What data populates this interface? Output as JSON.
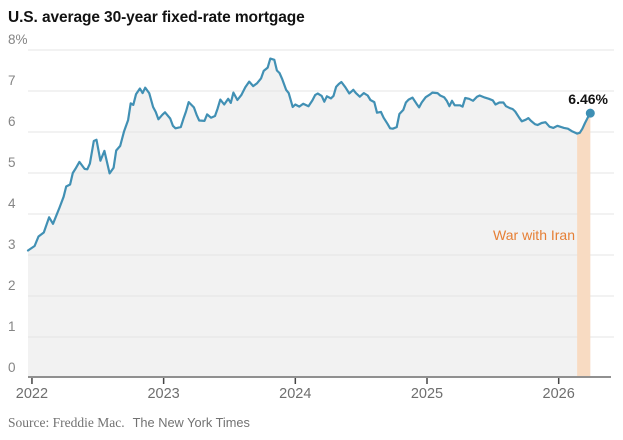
{
  "title": "U.S. average 30-year fixed-rate mortgage",
  "source": {
    "prefix": "Source: Freddie Mac.",
    "credit": "The New York Times"
  },
  "colors": {
    "line": "#4190b4",
    "end_dot": "#3e8fb4",
    "area_fill": "#f2f2f2",
    "gridline": "#e4e4e4",
    "band_fill": "#f8dbc2",
    "band_label": "#e67f35",
    "axis_line": "#909090",
    "tick_mark": "#444444",
    "title_text": "#121212",
    "annotation_text": "#121212",
    "y_label_text": "#858585",
    "x_label_text": "#6e6e6e",
    "source_text": "#727272"
  },
  "chart_data": {
    "type": "line",
    "title": "U.S. average 30-year fixed-rate mortgage",
    "unit": "percent",
    "xlim": [
      2021.97,
      2026.42
    ],
    "ylim": [
      0,
      8
    ],
    "grid": "horizontal",
    "legend": "none",
    "x_ticks": [
      {
        "value": 2022,
        "label": "2022"
      },
      {
        "value": 2023,
        "label": "2023"
      },
      {
        "value": 2024,
        "label": "2024"
      },
      {
        "value": 2025,
        "label": "2025"
      },
      {
        "value": 2026,
        "label": "2026"
      }
    ],
    "y_ticks": [
      {
        "value": 8,
        "label": "8%"
      },
      {
        "value": 7,
        "label": "7"
      },
      {
        "value": 6,
        "label": "6"
      },
      {
        "value": 5,
        "label": "5"
      },
      {
        "value": 4,
        "label": "4"
      },
      {
        "value": 3,
        "label": "3"
      },
      {
        "value": 2,
        "label": "2"
      },
      {
        "value": 1,
        "label": "1"
      },
      {
        "value": 0,
        "label": "0"
      }
    ],
    "band": {
      "label": "War with Iran",
      "x0": 2026.14,
      "x1": 2026.25
    },
    "end_point": {
      "x": 2026.24,
      "y": 6.46,
      "label": "6.46%"
    },
    "series": [
      {
        "name": "30-year fixed-rate mortgage rate",
        "points": [
          [
            2021.97,
            3.11
          ],
          [
            2022.02,
            3.22
          ],
          [
            2022.05,
            3.45
          ],
          [
            2022.09,
            3.55
          ],
          [
            2022.13,
            3.92
          ],
          [
            2022.16,
            3.76
          ],
          [
            2022.21,
            4.16
          ],
          [
            2022.24,
            4.42
          ],
          [
            2022.26,
            4.67
          ],
          [
            2022.29,
            4.72
          ],
          [
            2022.31,
            5.0
          ],
          [
            2022.33,
            5.1
          ],
          [
            2022.36,
            5.27
          ],
          [
            2022.4,
            5.1
          ],
          [
            2022.42,
            5.09
          ],
          [
            2022.44,
            5.23
          ],
          [
            2022.47,
            5.78
          ],
          [
            2022.49,
            5.81
          ],
          [
            2022.52,
            5.3
          ],
          [
            2022.55,
            5.54
          ],
          [
            2022.59,
            4.99
          ],
          [
            2022.62,
            5.13
          ],
          [
            2022.64,
            5.55
          ],
          [
            2022.67,
            5.66
          ],
          [
            2022.7,
            6.02
          ],
          [
            2022.73,
            6.29
          ],
          [
            2022.75,
            6.7
          ],
          [
            2022.77,
            6.66
          ],
          [
            2022.79,
            6.92
          ],
          [
            2022.82,
            7.06
          ],
          [
            2022.84,
            6.95
          ],
          [
            2022.86,
            7.08
          ],
          [
            2022.89,
            6.95
          ],
          [
            2022.92,
            6.61
          ],
          [
            2022.94,
            6.49
          ],
          [
            2022.96,
            6.31
          ],
          [
            2022.99,
            6.42
          ],
          [
            2023.01,
            6.48
          ],
          [
            2023.05,
            6.33
          ],
          [
            2023.07,
            6.15
          ],
          [
            2023.09,
            6.09
          ],
          [
            2023.13,
            6.12
          ],
          [
            2023.15,
            6.32
          ],
          [
            2023.17,
            6.5
          ],
          [
            2023.19,
            6.73
          ],
          [
            2023.23,
            6.6
          ],
          [
            2023.25,
            6.42
          ],
          [
            2023.27,
            6.28
          ],
          [
            2023.31,
            6.27
          ],
          [
            2023.33,
            6.43
          ],
          [
            2023.36,
            6.35
          ],
          [
            2023.39,
            6.39
          ],
          [
            2023.41,
            6.57
          ],
          [
            2023.43,
            6.79
          ],
          [
            2023.46,
            6.67
          ],
          [
            2023.49,
            6.81
          ],
          [
            2023.51,
            6.71
          ],
          [
            2023.53,
            6.96
          ],
          [
            2023.56,
            6.78
          ],
          [
            2023.59,
            6.9
          ],
          [
            2023.62,
            7.09
          ],
          [
            2023.65,
            7.23
          ],
          [
            2023.68,
            7.12
          ],
          [
            2023.71,
            7.19
          ],
          [
            2023.74,
            7.31
          ],
          [
            2023.76,
            7.49
          ],
          [
            2023.79,
            7.57
          ],
          [
            2023.81,
            7.79
          ],
          [
            2023.84,
            7.76
          ],
          [
            2023.86,
            7.5
          ],
          [
            2023.88,
            7.44
          ],
          [
            2023.9,
            7.29
          ],
          [
            2023.93,
            7.03
          ],
          [
            2023.95,
            6.95
          ],
          [
            2023.98,
            6.61
          ],
          [
            2024.0,
            6.67
          ],
          [
            2024.03,
            6.62
          ],
          [
            2024.06,
            6.69
          ],
          [
            2024.1,
            6.63
          ],
          [
            2024.13,
            6.77
          ],
          [
            2024.15,
            6.9
          ],
          [
            2024.17,
            6.94
          ],
          [
            2024.2,
            6.88
          ],
          [
            2024.22,
            6.74
          ],
          [
            2024.24,
            6.87
          ],
          [
            2024.27,
            6.82
          ],
          [
            2024.29,
            6.88
          ],
          [
            2024.31,
            7.1
          ],
          [
            2024.33,
            7.17
          ],
          [
            2024.35,
            7.22
          ],
          [
            2024.38,
            7.09
          ],
          [
            2024.41,
            6.94
          ],
          [
            2024.44,
            7.03
          ],
          [
            2024.46,
            6.95
          ],
          [
            2024.49,
            6.86
          ],
          [
            2024.52,
            6.95
          ],
          [
            2024.55,
            6.89
          ],
          [
            2024.57,
            6.78
          ],
          [
            2024.6,
            6.73
          ],
          [
            2024.62,
            6.47
          ],
          [
            2024.65,
            6.49
          ],
          [
            2024.67,
            6.35
          ],
          [
            2024.7,
            6.2
          ],
          [
            2024.72,
            6.09
          ],
          [
            2024.74,
            6.08
          ],
          [
            2024.77,
            6.12
          ],
          [
            2024.79,
            6.44
          ],
          [
            2024.82,
            6.54
          ],
          [
            2024.84,
            6.72
          ],
          [
            2024.86,
            6.79
          ],
          [
            2024.89,
            6.84
          ],
          [
            2024.92,
            6.69
          ],
          [
            2024.94,
            6.6
          ],
          [
            2024.96,
            6.72
          ],
          [
            2024.99,
            6.85
          ],
          [
            2025.02,
            6.91
          ],
          [
            2025.04,
            6.96
          ],
          [
            2025.08,
            6.95
          ],
          [
            2025.1,
            6.89
          ],
          [
            2025.13,
            6.85
          ],
          [
            2025.15,
            6.76
          ],
          [
            2025.17,
            6.63
          ],
          [
            2025.19,
            6.76
          ],
          [
            2025.21,
            6.65
          ],
          [
            2025.25,
            6.65
          ],
          [
            2025.27,
            6.62
          ],
          [
            2025.29,
            6.83
          ],
          [
            2025.32,
            6.81
          ],
          [
            2025.35,
            6.76
          ],
          [
            2025.38,
            6.86
          ],
          [
            2025.4,
            6.89
          ],
          [
            2025.44,
            6.84
          ],
          [
            2025.47,
            6.81
          ],
          [
            2025.5,
            6.77
          ],
          [
            2025.52,
            6.67
          ],
          [
            2025.55,
            6.72
          ],
          [
            2025.58,
            6.72
          ],
          [
            2025.6,
            6.63
          ],
          [
            2025.63,
            6.58
          ],
          [
            2025.65,
            6.56
          ],
          [
            2025.67,
            6.5
          ],
          [
            2025.7,
            6.35
          ],
          [
            2025.72,
            6.26
          ],
          [
            2025.75,
            6.3
          ],
          [
            2025.77,
            6.34
          ],
          [
            2025.79,
            6.27
          ],
          [
            2025.82,
            6.19
          ],
          [
            2025.84,
            6.17
          ],
          [
            2025.87,
            6.22
          ],
          [
            2025.9,
            6.24
          ],
          [
            2025.93,
            6.13
          ],
          [
            2025.96,
            6.1
          ],
          [
            2025.99,
            6.15
          ],
          [
            2026.02,
            6.12
          ],
          [
            2026.04,
            6.1
          ],
          [
            2026.07,
            6.08
          ],
          [
            2026.1,
            6.02
          ],
          [
            2026.12,
            5.99
          ],
          [
            2026.14,
            5.96
          ],
          [
            2026.16,
            5.98
          ],
          [
            2026.18,
            6.08
          ],
          [
            2026.2,
            6.22
          ],
          [
            2026.22,
            6.35
          ],
          [
            2026.24,
            6.46
          ]
        ]
      }
    ]
  }
}
